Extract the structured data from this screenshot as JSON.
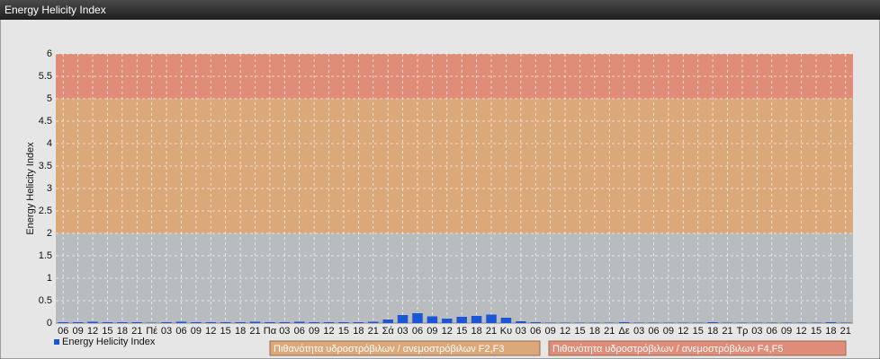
{
  "chart_data": {
    "type": "bar",
    "title": "Energy Helicity Index",
    "y_label": "Energy Helicity Index",
    "categories": [
      "06",
      "09",
      "12",
      "15",
      "18",
      "21",
      "Πέ",
      "03",
      "06",
      "09",
      "12",
      "15",
      "18",
      "21",
      "Πα",
      "03",
      "06",
      "09",
      "12",
      "15",
      "18",
      "21",
      "Σά",
      "03",
      "06",
      "09",
      "12",
      "15",
      "18",
      "21",
      "Κυ",
      "03",
      "06",
      "09",
      "12",
      "15",
      "18",
      "21",
      "Δε",
      "03",
      "06",
      "09",
      "12",
      "15",
      "18",
      "21",
      "Τρ",
      "03",
      "06",
      "09",
      "12",
      "15",
      "18",
      "21"
    ],
    "series": [
      {
        "name": "Energy Helicity Index",
        "color": "#1a56d6",
        "values": [
          0.02,
          0.02,
          0.03,
          0.02,
          0.02,
          0.02,
          0.01,
          0.02,
          0.03,
          0.02,
          0.02,
          0.02,
          0.02,
          0.03,
          0.02,
          0.02,
          0.03,
          0.02,
          0.02,
          0.02,
          0.02,
          0.03,
          0.08,
          0.18,
          0.22,
          0.15,
          0.1,
          0.14,
          0.16,
          0.19,
          0.12,
          0.04,
          0.02,
          0.01,
          0.01,
          0.01,
          0.01,
          0.01,
          0.02,
          0.01,
          0.01,
          0.01,
          0.01,
          0.01,
          0.02,
          0.01,
          0.01,
          0.01,
          0.01,
          0.01,
          0.01,
          0.01,
          0.02,
          0.01
        ]
      }
    ],
    "bands": [
      {
        "from": 0,
        "to": 2,
        "color": "#b9bcbe"
      },
      {
        "from": 2,
        "to": 5,
        "color": "#dba87a",
        "name": "Πιθανότητα υδροστρόβιλων / ανεμοστρόβιλων F2,F3"
      },
      {
        "from": 5,
        "to": 6,
        "color": "#df8c78",
        "name": "Πιθανότητα υδροστρόβιλων / ανεμοστρόβιλων F4,F5"
      }
    ],
    "ylim": [
      0,
      6
    ],
    "yticks": [
      0,
      0.5,
      1,
      1.5,
      2,
      2.5,
      3,
      3.5,
      4,
      4.5,
      5,
      5.5,
      6
    ],
    "grid": true
  }
}
